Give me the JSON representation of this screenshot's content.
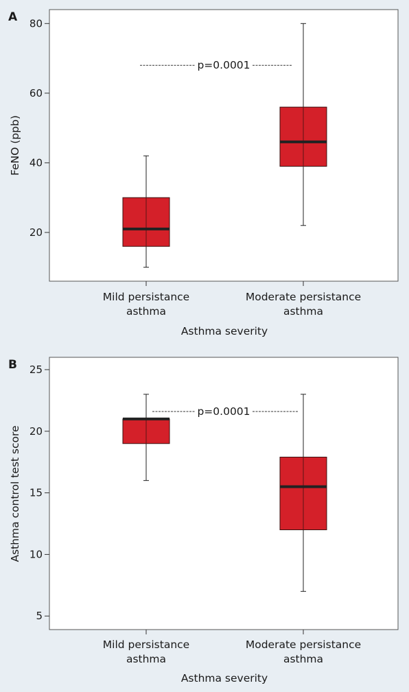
{
  "chart_data": [
    {
      "type": "box",
      "panel_label": "A",
      "xlabel": "Asthma severity",
      "ylabel": "FeNO (ppb)",
      "categories": [
        [
          "Mild persistance",
          "asthma"
        ],
        [
          "Moderate persistance",
          "asthma"
        ]
      ],
      "yticks": [
        20,
        40,
        60,
        80
      ],
      "ylim": [
        6,
        84
      ],
      "boxes": [
        {
          "min": 10,
          "q1": 16,
          "median": 21,
          "q3": 30,
          "max": 42
        },
        {
          "min": 22,
          "q1": 39,
          "median": 46,
          "q3": 56,
          "max": 80
        }
      ],
      "annotation": {
        "text": "p=0.0001",
        "y": 68
      },
      "grid": false,
      "box_color": "#d42029"
    },
    {
      "type": "box",
      "panel_label": "B",
      "xlabel": "Asthma severity",
      "ylabel": "Asthma control test score",
      "categories": [
        [
          "Mild persistance",
          "asthma"
        ],
        [
          "Moderate persistance",
          "asthma"
        ]
      ],
      "yticks": [
        5,
        10,
        15,
        20,
        25
      ],
      "ylim": [
        3.9,
        26
      ],
      "boxes": [
        {
          "min": 16,
          "q1": 19,
          "median": 21,
          "q3": 21,
          "max": 23
        },
        {
          "min": 7,
          "q1": 12,
          "median": 15.5,
          "q3": 17.9,
          "max": 23
        }
      ],
      "annotation": {
        "text": "p=0.0001",
        "y": 21.6
      },
      "grid": false,
      "box_color": "#d42029"
    }
  ]
}
